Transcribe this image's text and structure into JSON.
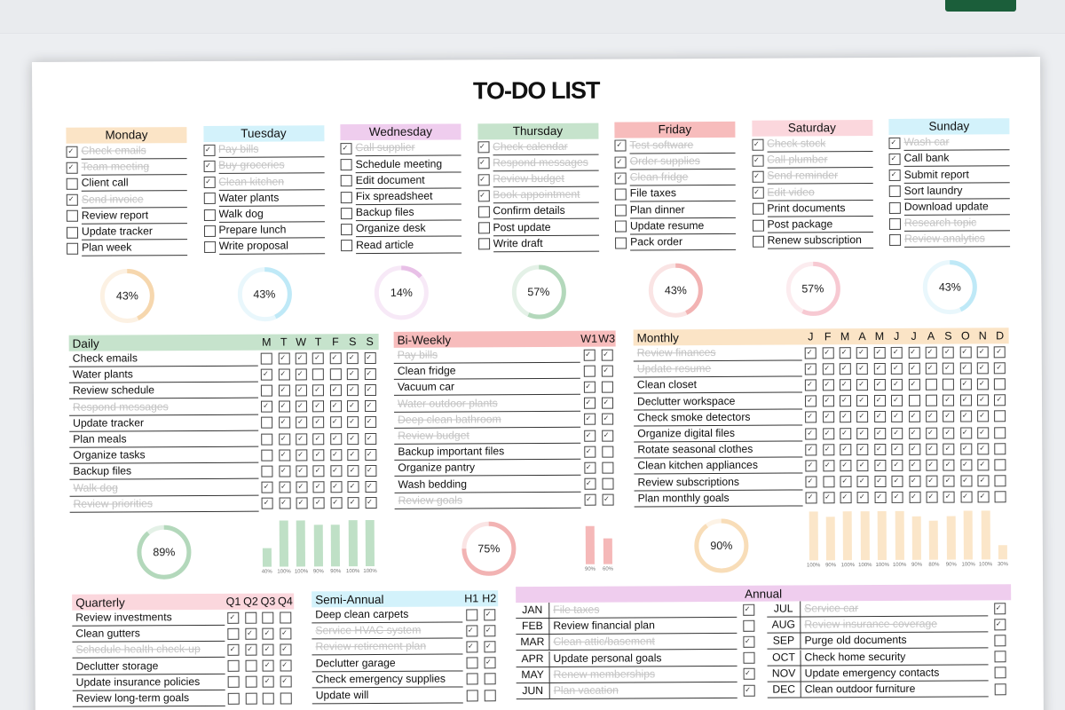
{
  "title": "TO-DO LIST",
  "colors": {
    "monday": "#fbe4c6",
    "tuesday": "#d3f2fb",
    "wednesday": "#efcdee",
    "thursday": "#c6e3cc",
    "friday": "#f7bcbc",
    "saturday": "#fbd7dd",
    "sunday": "#d3f2fb",
    "daily": "#c6e3cc",
    "biweekly": "#f7bcbc",
    "monthly": "#fbe4c6",
    "quarterly": "#fbd7dd",
    "semiannual": "#d3f2fb",
    "annual": "#efcdee",
    "top_button": "#1b5e3a"
  },
  "days": [
    {
      "name": "Monday",
      "color": "#fbe4c6",
      "ring": "#f6d7ae",
      "percent": "43%",
      "value": 43,
      "tasks": [
        {
          "label": "Check emails",
          "done": true
        },
        {
          "label": "Team meeting",
          "done": true
        },
        {
          "label": "Client call",
          "done": false
        },
        {
          "label": "Send invoice",
          "done": true
        },
        {
          "label": "Review report",
          "done": false
        },
        {
          "label": "Update tracker",
          "done": false
        },
        {
          "label": "Plan week",
          "done": false
        }
      ]
    },
    {
      "name": "Tuesday",
      "color": "#d3f2fb",
      "ring": "#bfe9f7",
      "percent": "43%",
      "value": 43,
      "tasks": [
        {
          "label": "Pay bills",
          "done": true
        },
        {
          "label": "Buy groceries",
          "done": true
        },
        {
          "label": "Clean kitchen",
          "done": true
        },
        {
          "label": "Water plants",
          "done": false
        },
        {
          "label": "Walk dog",
          "done": false
        },
        {
          "label": "Prepare lunch",
          "done": false
        },
        {
          "label": "Write proposal",
          "done": false
        }
      ]
    },
    {
      "name": "Wednesday",
      "color": "#efcdee",
      "ring": "#e8c0e7",
      "percent": "14%",
      "value": 14,
      "tasks": [
        {
          "label": "Call supplier",
          "done": true
        },
        {
          "label": "Schedule meeting",
          "done": false
        },
        {
          "label": "Edit document",
          "done": false
        },
        {
          "label": "Fix spreadsheet",
          "done": false
        },
        {
          "label": "Backup files",
          "done": false
        },
        {
          "label": "Organize desk",
          "done": false
        },
        {
          "label": "Read article",
          "done": false
        }
      ]
    },
    {
      "name": "Thursday",
      "color": "#c6e3cc",
      "ring": "#b3d8bb",
      "percent": "57%",
      "value": 57,
      "tasks": [
        {
          "label": "Check calendar",
          "done": true
        },
        {
          "label": "Respond messages",
          "done": true
        },
        {
          "label": "Review budget",
          "done": true
        },
        {
          "label": "Book appointment",
          "done": true
        },
        {
          "label": "Confirm details",
          "done": false
        },
        {
          "label": "Post update",
          "done": false
        },
        {
          "label": "Write draft",
          "done": false
        }
      ]
    },
    {
      "name": "Friday",
      "color": "#f7bcbc",
      "ring": "#f2b3b3",
      "percent": "43%",
      "value": 43,
      "tasks": [
        {
          "label": "Test software",
          "done": true
        },
        {
          "label": "Order supplies",
          "done": true
        },
        {
          "label": "Clean fridge",
          "done": true
        },
        {
          "label": "File taxes",
          "done": false
        },
        {
          "label": "Plan dinner",
          "done": false
        },
        {
          "label": "Update resume",
          "done": false
        },
        {
          "label": "Pack order",
          "done": false
        }
      ]
    },
    {
      "name": "Saturday",
      "color": "#fbd7dd",
      "ring": "#f7c9d2",
      "percent": "57%",
      "value": 57,
      "tasks": [
        {
          "label": "Check stock",
          "done": true
        },
        {
          "label": "Call plumber",
          "done": true
        },
        {
          "label": "Send reminder",
          "done": true
        },
        {
          "label": "Edit video",
          "done": true
        },
        {
          "label": "Print documents",
          "done": false
        },
        {
          "label": "Post package",
          "done": false
        },
        {
          "label": "Renew subscription",
          "done": false
        }
      ]
    },
    {
      "name": "Sunday",
      "color": "#d3f2fb",
      "ring": "#bfe9f7",
      "percent": "43%",
      "value": 43,
      "tasks": [
        {
          "label": "Wash car",
          "done": true
        },
        {
          "label": "Call bank",
          "done": false,
          "checked": true
        },
        {
          "label": "Submit report",
          "done": false,
          "checked": true
        },
        {
          "label": "Sort laundry",
          "done": false
        },
        {
          "label": "Download update",
          "done": false
        },
        {
          "label": "Research topic",
          "done": true,
          "checked": false
        },
        {
          "label": "Review analytics",
          "done": true,
          "checked": false
        }
      ]
    }
  ],
  "daily": {
    "title": "Daily",
    "columns": [
      "M",
      "T",
      "W",
      "T",
      "F",
      "S",
      "S"
    ],
    "rows": [
      {
        "label": "Check emails",
        "done": false,
        "checks": [
          0,
          1,
          1,
          1,
          1,
          1,
          1
        ]
      },
      {
        "label": "Water plants",
        "done": false,
        "checks": [
          1,
          1,
          1,
          0,
          0,
          1,
          1
        ]
      },
      {
        "label": "Review schedule",
        "done": false,
        "checks": [
          0,
          1,
          1,
          1,
          1,
          1,
          1
        ]
      },
      {
        "label": "Respond messages",
        "done": true,
        "checks": [
          1,
          1,
          1,
          1,
          1,
          1,
          1
        ]
      },
      {
        "label": "Update tracker",
        "done": false,
        "checks": [
          0,
          1,
          1,
          1,
          1,
          1,
          1
        ]
      },
      {
        "label": "Plan meals",
        "done": false,
        "checks": [
          0,
          1,
          1,
          1,
          1,
          1,
          1
        ]
      },
      {
        "label": "Organize tasks",
        "done": false,
        "checks": [
          0,
          1,
          1,
          1,
          1,
          1,
          1
        ]
      },
      {
        "label": "Backup files",
        "done": false,
        "checks": [
          0,
          1,
          1,
          1,
          1,
          1,
          1
        ]
      },
      {
        "label": "Walk dog",
        "done": true,
        "checks": [
          1,
          1,
          1,
          1,
          1,
          1,
          1
        ]
      },
      {
        "label": "Review priorities",
        "done": true,
        "checks": [
          1,
          1,
          1,
          1,
          1,
          1,
          1
        ]
      }
    ],
    "percent": "89%",
    "value": 89
  },
  "biweekly": {
    "title": "Bi-Weekly",
    "columns": [
      "W1",
      "W3"
    ],
    "rows": [
      {
        "label": "Pay bills",
        "done": true,
        "checks": [
          1,
          1
        ]
      },
      {
        "label": "Clean fridge",
        "done": false,
        "checks": [
          0,
          1
        ]
      },
      {
        "label": "Vacuum car",
        "done": false,
        "checks": [
          1,
          0
        ]
      },
      {
        "label": "Water outdoor plants",
        "done": true,
        "checks": [
          1,
          1
        ]
      },
      {
        "label": "Deep clean bathroom",
        "done": true,
        "checks": [
          1,
          1
        ]
      },
      {
        "label": "Review budget",
        "done": true,
        "checks": [
          1,
          1
        ]
      },
      {
        "label": "Backup important files",
        "done": false,
        "checks": [
          1,
          0
        ]
      },
      {
        "label": "Organize pantry",
        "done": false,
        "checks": [
          1,
          0
        ]
      },
      {
        "label": "Wash bedding",
        "done": false,
        "checks": [
          1,
          0
        ]
      },
      {
        "label": "Review goals",
        "done": true,
        "checks": [
          1,
          1
        ]
      }
    ],
    "percent": "75%",
    "value": 75
  },
  "monthly": {
    "title": "Monthly",
    "columns": [
      "J",
      "F",
      "M",
      "A",
      "M",
      "J",
      "J",
      "A",
      "S",
      "O",
      "N",
      "D"
    ],
    "rows": [
      {
        "label": "Review finances",
        "done": true,
        "checks": [
          1,
          1,
          1,
          1,
          1,
          1,
          1,
          1,
          1,
          1,
          1,
          1
        ]
      },
      {
        "label": "Update resume",
        "done": true,
        "checks": [
          1,
          1,
          1,
          1,
          1,
          1,
          1,
          1,
          1,
          1,
          1,
          1
        ]
      },
      {
        "label": "Clean closet",
        "done": false,
        "checks": [
          1,
          1,
          1,
          1,
          1,
          1,
          1,
          0,
          0,
          1,
          1,
          0
        ]
      },
      {
        "label": "Declutter workspace",
        "done": false,
        "checks": [
          1,
          1,
          1,
          1,
          1,
          1,
          0,
          0,
          1,
          1,
          1,
          1
        ]
      },
      {
        "label": "Check smoke detectors",
        "done": false,
        "checks": [
          1,
          1,
          1,
          1,
          1,
          1,
          1,
          1,
          1,
          1,
          1,
          0
        ]
      },
      {
        "label": "Organize digital files",
        "done": false,
        "checks": [
          1,
          1,
          1,
          1,
          1,
          1,
          1,
          1,
          1,
          1,
          1,
          0
        ]
      },
      {
        "label": "Rotate seasonal clothes",
        "done": false,
        "checks": [
          1,
          1,
          1,
          1,
          1,
          1,
          1,
          1,
          1,
          1,
          1,
          0
        ]
      },
      {
        "label": "Clean kitchen appliances",
        "done": false,
        "checks": [
          1,
          1,
          1,
          1,
          1,
          1,
          1,
          1,
          1,
          1,
          1,
          0
        ]
      },
      {
        "label": "Review subscriptions",
        "done": false,
        "checks": [
          1,
          0,
          1,
          1,
          1,
          1,
          1,
          1,
          1,
          1,
          1,
          0
        ]
      },
      {
        "label": "Plan monthly goals",
        "done": false,
        "checks": [
          1,
          1,
          1,
          1,
          1,
          1,
          1,
          1,
          1,
          1,
          1,
          0
        ]
      }
    ],
    "percent": "90%",
    "value": 90
  },
  "quarterly": {
    "title": "Quarterly",
    "columns": [
      "Q1",
      "Q2",
      "Q3",
      "Q4"
    ],
    "rows": [
      {
        "label": "Review investments",
        "done": false,
        "checks": [
          1,
          0,
          0,
          0
        ]
      },
      {
        "label": "Clean gutters",
        "done": false,
        "checks": [
          0,
          1,
          1,
          1
        ]
      },
      {
        "label": "Schedule health check-up",
        "done": true,
        "checks": [
          1,
          1,
          1,
          1
        ]
      },
      {
        "label": "Declutter storage",
        "done": false,
        "checks": [
          0,
          0,
          1,
          1
        ]
      },
      {
        "label": "Update insurance policies",
        "done": false,
        "checks": [
          0,
          0,
          1,
          1
        ]
      },
      {
        "label": "Review long-term goals",
        "done": false,
        "checks": [
          0,
          0,
          0,
          0
        ]
      }
    ]
  },
  "semiannual": {
    "title": "Semi-Annual",
    "columns": [
      "H1",
      "H2"
    ],
    "rows": [
      {
        "label": "Deep clean carpets",
        "done": false,
        "checks": [
          0,
          1
        ]
      },
      {
        "label": "Service HVAC system",
        "done": true,
        "checks": [
          1,
          1
        ]
      },
      {
        "label": "Review retirement plan",
        "done": true,
        "checks": [
          1,
          1
        ]
      },
      {
        "label": "Declutter garage",
        "done": false,
        "checks": [
          0,
          1
        ]
      },
      {
        "label": "Check emergency supplies",
        "done": false,
        "checks": [
          0,
          0
        ]
      },
      {
        "label": "Update will",
        "done": false,
        "checks": [
          0,
          0
        ]
      }
    ]
  },
  "annual": {
    "title": "Annual",
    "left": [
      {
        "month": "JAN",
        "label": "File taxes",
        "done": true
      },
      {
        "month": "FEB",
        "label": "Review financial plan",
        "done": false
      },
      {
        "month": "MAR",
        "label": "Clean attic/basement",
        "done": true
      },
      {
        "month": "APR",
        "label": "Update personal goals",
        "done": false
      },
      {
        "month": "MAY",
        "label": "Renew memberships",
        "done": true
      },
      {
        "month": "JUN",
        "label": "Plan vacation",
        "done": true
      }
    ],
    "right": [
      {
        "month": "JUL",
        "label": "Service car",
        "done": true
      },
      {
        "month": "AUG",
        "label": "Review insurance coverage",
        "done": true
      },
      {
        "month": "SEP",
        "label": "Purge old documents",
        "done": false
      },
      {
        "month": "OCT",
        "label": "Check home security",
        "done": false
      },
      {
        "month": "NOV",
        "label": "Update emergency contacts",
        "done": false
      },
      {
        "month": "DEC",
        "label": "Clean outdoor furniture",
        "done": false
      }
    ]
  },
  "chart_data": [
    {
      "type": "bar",
      "title": "Daily completion by weekday",
      "categories": [
        "M",
        "T",
        "W",
        "T",
        "F",
        "S",
        "S"
      ],
      "values": [
        40,
        100,
        100,
        90,
        90,
        100,
        100
      ],
      "labels": [
        "40%",
        "100%",
        "100%",
        "90%",
        "90%",
        "100%",
        "100%"
      ],
      "ylim": [
        0,
        100
      ],
      "color": "#bfe0c6"
    },
    {
      "type": "bar",
      "title": "Bi-Weekly completion",
      "categories": [
        "W1",
        "W3"
      ],
      "values": [
        90,
        60
      ],
      "labels": [
        "90%",
        "60%"
      ],
      "ylim": [
        0,
        100
      ],
      "color": "#f5b8b8"
    },
    {
      "type": "bar",
      "title": "Monthly completion",
      "categories": [
        "J",
        "F",
        "M",
        "A",
        "M",
        "J",
        "J",
        "A",
        "S",
        "O",
        "N",
        "D"
      ],
      "values": [
        100,
        90,
        100,
        100,
        100,
        100,
        90,
        80,
        90,
        100,
        100,
        30
      ],
      "labels": [
        "100%",
        "90%",
        "100%",
        "100%",
        "100%",
        "100%",
        "90%",
        "80%",
        "90%",
        "100%",
        "100%",
        "30%"
      ],
      "ylim": [
        0,
        100
      ],
      "color": "#fbe6c9"
    },
    {
      "type": "pie",
      "title": "Progress donuts",
      "categories": [
        "Monday",
        "Tuesday",
        "Wednesday",
        "Thursday",
        "Friday",
        "Saturday",
        "Sunday",
        "Daily",
        "Bi-Weekly",
        "Monthly"
      ],
      "values": [
        43,
        43,
        14,
        57,
        43,
        57,
        43,
        89,
        75,
        90
      ]
    }
  ]
}
